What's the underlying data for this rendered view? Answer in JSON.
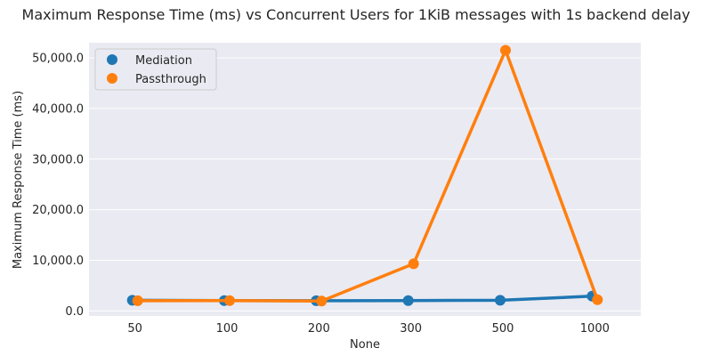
{
  "chart_data": {
    "type": "line",
    "title": "Maximum Response Time (ms) vs Concurrent Users for 1KiB messages with 1s backend delay",
    "xlabel": "None",
    "ylabel": "Maximum Response Time (ms)",
    "categories": [
      "50",
      "100",
      "200",
      "300",
      "500",
      "1000"
    ],
    "ylim": [
      -1000,
      53000
    ],
    "yticks": [
      0,
      10000,
      20000,
      30000,
      40000,
      50000
    ],
    "ytick_labels": [
      "0.0",
      "10,000.0",
      "20,000.0",
      "30,000.0",
      "40,000.0",
      "50,000.0"
    ],
    "grid": true,
    "legend_placement": "top-left",
    "series": [
      {
        "name": "Mediation",
        "color": "#1f77b4",
        "values": [
          2100,
          2050,
          2000,
          2050,
          2100,
          2900
        ]
      },
      {
        "name": "Passthrough",
        "color": "#ff7f0e",
        "values": [
          2000,
          2050,
          1950,
          9300,
          51500,
          2200
        ]
      }
    ]
  },
  "colors": {
    "plot_background": "#eaeaf2",
    "grid": "#ffffff"
  }
}
